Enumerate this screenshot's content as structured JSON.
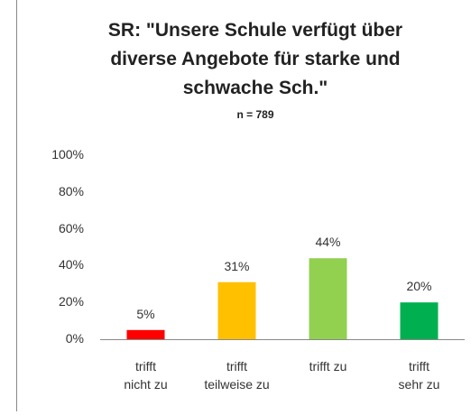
{
  "chart_data": {
    "type": "bar",
    "title": "SR: \"Unsere Schule verfügt über diverse Angebote für starke und schwache Sch.\"",
    "subtitle": "n = 789",
    "categories": [
      "trifft\nnicht zu",
      "trifft\nteilweise zu",
      "trifft zu",
      "trifft\nsehr zu"
    ],
    "values": [
      5,
      31,
      44,
      20
    ],
    "value_labels": [
      "5%",
      "31%",
      "44%",
      "20%"
    ],
    "colors": [
      "#ff0000",
      "#ffc000",
      "#92d050",
      "#00b050"
    ],
    "ylim": [
      0,
      100
    ],
    "yticks": [
      {
        "value": 0,
        "label": "0%"
      },
      {
        "value": 20,
        "label": "20%"
      },
      {
        "value": 40,
        "label": "40%"
      },
      {
        "value": 60,
        "label": "60%"
      },
      {
        "value": 80,
        "label": "80%"
      },
      {
        "value": 100,
        "label": "100%"
      }
    ],
    "grid": false
  }
}
